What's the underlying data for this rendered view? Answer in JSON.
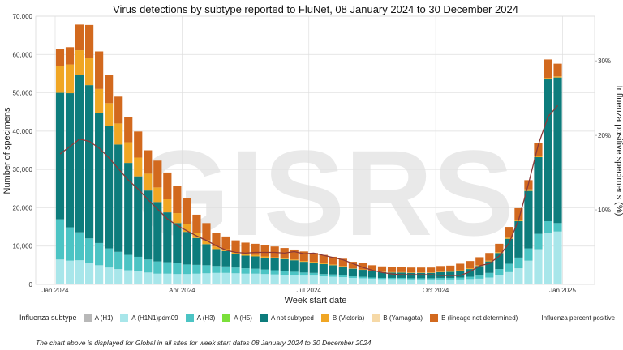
{
  "chart_data": {
    "type": "bar",
    "title": "Virus detections by subtype reported to FluNet, 08 January 2024 to 30 December 2024",
    "xlabel": "Week start date",
    "ylabel": "Number of specimens",
    "y2label": "Influenza positive specimens (%)",
    "ylim": [
      0,
      70000
    ],
    "y2lim": [
      0,
      36
    ],
    "y_ticks": [
      0,
      10000,
      20000,
      30000,
      40000,
      50000,
      60000,
      70000
    ],
    "y_tick_labels": [
      "0",
      "10,000",
      "20,000",
      "30,000",
      "40,000",
      "50,000",
      "60,000",
      "70,000"
    ],
    "y2_ticks": [
      10,
      20,
      30
    ],
    "y2_tick_labels": [
      "10%",
      "20%",
      "30%"
    ],
    "x_ticks": [
      {
        "index": -1,
        "label": "Jan 2024"
      },
      {
        "index": 12,
        "label": "Apr 2024"
      },
      {
        "index": 25,
        "label": "Jul 2024"
      },
      {
        "index": 38,
        "label": "Oct 2024"
      },
      {
        "index": 51,
        "label": "Jan 2025"
      }
    ],
    "grid": true,
    "legend_position": "bottom",
    "categories": [
      "2024-01-08",
      "2024-01-15",
      "2024-01-22",
      "2024-01-29",
      "2024-02-05",
      "2024-02-12",
      "2024-02-19",
      "2024-02-26",
      "2024-03-04",
      "2024-03-11",
      "2024-03-18",
      "2024-03-25",
      "2024-04-01",
      "2024-04-08",
      "2024-04-15",
      "2024-04-22",
      "2024-04-29",
      "2024-05-06",
      "2024-05-13",
      "2024-05-20",
      "2024-05-27",
      "2024-06-03",
      "2024-06-10",
      "2024-06-17",
      "2024-06-24",
      "2024-07-01",
      "2024-07-08",
      "2024-07-15",
      "2024-07-22",
      "2024-07-29",
      "2024-08-05",
      "2024-08-12",
      "2024-08-19",
      "2024-08-26",
      "2024-09-02",
      "2024-09-09",
      "2024-09-16",
      "2024-09-23",
      "2024-09-30",
      "2024-10-07",
      "2024-10-14",
      "2024-10-21",
      "2024-10-28",
      "2024-11-04",
      "2024-11-11",
      "2024-11-18",
      "2024-11-25",
      "2024-12-02",
      "2024-12-09",
      "2024-12-16",
      "2024-12-23",
      "2024-12-30"
    ],
    "series": [
      {
        "name": "A (H1)",
        "color": "#b8b8b8",
        "values": [
          0,
          0,
          0,
          0,
          0,
          0,
          0,
          0,
          0,
          0,
          0,
          0,
          0,
          0,
          0,
          0,
          0,
          0,
          0,
          0,
          0,
          0,
          0,
          0,
          0,
          0,
          0,
          0,
          0,
          0,
          0,
          0,
          0,
          0,
          0,
          0,
          0,
          0,
          0,
          0,
          0,
          0,
          0,
          0,
          0,
          0,
          0,
          0,
          0,
          0,
          0,
          0
        ]
      },
      {
        "name": "A (H1N1)pdm09",
        "color": "#a8e6ea",
        "values": [
          6500,
          6200,
          6300,
          5500,
          5000,
          4400,
          4000,
          3700,
          3400,
          3100,
          2800,
          2800,
          2700,
          2700,
          2800,
          2900,
          3000,
          3000,
          2900,
          2800,
          2800,
          2700,
          2600,
          2500,
          2400,
          2300,
          2300,
          2100,
          2000,
          1900,
          1700,
          1600,
          1500,
          1400,
          1400,
          1400,
          1300,
          1300,
          1300,
          1300,
          1300,
          1300,
          1400,
          1500,
          1800,
          2400,
          3200,
          4200,
          6200,
          9200,
          13500,
          13800
        ]
      },
      {
        "name": "A (H3)",
        "color": "#4cc4c4",
        "values": [
          10500,
          8700,
          7300,
          6500,
          5800,
          5000,
          4500,
          4000,
          3800,
          3400,
          3200,
          3000,
          2800,
          2500,
          2300,
          2100,
          1800,
          1700,
          1500,
          1400,
          1300,
          1200,
          1100,
          1000,
          900,
          800,
          700,
          600,
          600,
          500,
          400,
          400,
          300,
          300,
          300,
          300,
          300,
          300,
          300,
          400,
          400,
          500,
          600,
          800,
          1200,
          1600,
          2200,
          2800,
          3200,
          4000,
          3000,
          2200
        ]
      },
      {
        "name": "A (H5)",
        "color": "#7be03a",
        "values": [
          0,
          0,
          0,
          0,
          0,
          0,
          0,
          0,
          0,
          0,
          0,
          0,
          0,
          0,
          0,
          0,
          0,
          0,
          0,
          0,
          0,
          0,
          0,
          0,
          0,
          0,
          0,
          0,
          0,
          0,
          0,
          0,
          0,
          0,
          0,
          0,
          0,
          0,
          0,
          0,
          0,
          0,
          0,
          0,
          0,
          0,
          0,
          0,
          0,
          0,
          0,
          0
        ]
      },
      {
        "name": "A not subtyped",
        "color": "#0d7c7c",
        "values": [
          33000,
          35000,
          41000,
          40000,
          34000,
          32000,
          28000,
          24000,
          21000,
          18000,
          15500,
          13000,
          10500,
          8500,
          7000,
          5500,
          4400,
          4000,
          3600,
          3300,
          3200,
          3100,
          3100,
          3100,
          3000,
          2800,
          2700,
          2600,
          2400,
          2200,
          2000,
          1800,
          1600,
          1500,
          1400,
          1400,
          1400,
          1400,
          1400,
          1500,
          1600,
          1800,
          2000,
          2500,
          3000,
          4200,
          6500,
          9500,
          15000,
          20000,
          37000,
          38000
        ]
      },
      {
        "name": "B (Victoria)",
        "color": "#f0a624",
        "values": [
          7000,
          7500,
          6500,
          7200,
          6200,
          5900,
          5500,
          5400,
          4900,
          4400,
          3800,
          3400,
          2600,
          2000,
          1400,
          1000,
          700,
          500,
          400,
          400,
          400,
          300,
          300,
          200,
          200,
          200,
          200,
          200,
          200,
          200,
          100,
          100,
          100,
          100,
          100,
          100,
          100,
          100,
          100,
          100,
          100,
          100,
          200,
          200,
          200,
          200,
          300,
          400,
          400,
          400,
          400,
          300
        ]
      },
      {
        "name": "B (Yamagata)",
        "color": "#f6d9a7",
        "values": [
          0,
          0,
          0,
          0,
          0,
          0,
          0,
          0,
          0,
          0,
          0,
          0,
          0,
          0,
          0,
          0,
          0,
          0,
          0,
          0,
          0,
          0,
          0,
          0,
          0,
          0,
          0,
          0,
          0,
          0,
          0,
          0,
          0,
          0,
          0,
          0,
          0,
          0,
          0,
          0,
          0,
          0,
          0,
          0,
          0,
          0,
          0,
          0,
          0,
          0,
          0,
          0
        ]
      },
      {
        "name": "B (lineage not determined)",
        "color": "#d2691e",
        "values": [
          4500,
          4500,
          6700,
          8500,
          9800,
          7400,
          7000,
          6500,
          6800,
          6100,
          7000,
          7000,
          7100,
          6900,
          4700,
          4500,
          3600,
          3300,
          3100,
          3000,
          2900,
          2900,
          2800,
          2700,
          2600,
          2500,
          2300,
          2200,
          2000,
          1900,
          1700,
          1600,
          1500,
          1400,
          1300,
          1300,
          1300,
          1300,
          1300,
          1500,
          1500,
          1700,
          1900,
          2100,
          2000,
          2200,
          2800,
          3000,
          2400,
          3300,
          4800,
          3300
        ]
      }
    ],
    "line": {
      "name": "Influenza percent positive",
      "color": "#8b3a3a",
      "axis": "y2",
      "values": [
        17.5,
        18.5,
        19.5,
        19.2,
        18.3,
        17.0,
        15.5,
        14.0,
        12.8,
        11.4,
        10.1,
        8.8,
        7.9,
        7.2,
        6.5,
        5.9,
        5.2,
        4.6,
        4.3,
        4.2,
        4.3,
        4.3,
        4.3,
        4.2,
        4.4,
        4.1,
        4.2,
        3.9,
        3.6,
        3.3,
        2.8,
        2.3,
        1.9,
        1.6,
        1.4,
        1.3,
        1.3,
        1.3,
        1.3,
        1.2,
        1.2,
        1.2,
        1.7,
        2.5,
        2.8,
        3.8,
        5.5,
        8.7,
        13.5,
        18.7,
        22.5,
        24.0
      ]
    }
  },
  "legend": {
    "title": "Influenza subtype",
    "line_label": "Influenza percent positive"
  },
  "footnote": "The chart above is displayed for Global in all sites for week start dates 08 January 2024 to 30 December 2024",
  "watermark": "GISRS"
}
